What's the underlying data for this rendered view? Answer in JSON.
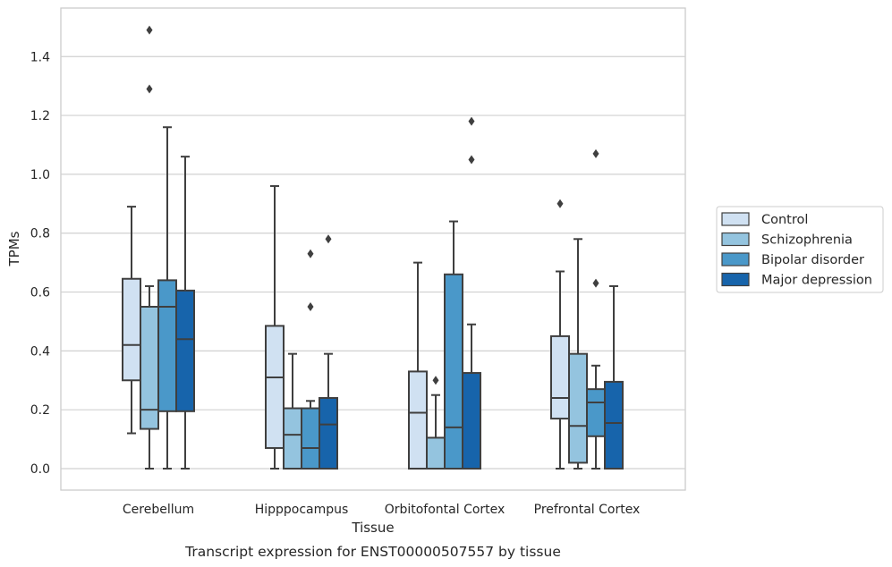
{
  "caption": "Transcript expression for ENST00000507557 by tissue",
  "chart_data": {
    "type": "box",
    "xlabel": "Tissue",
    "ylabel": "TPMs",
    "ylim": [
      -0.07,
      1.57
    ],
    "yticks": [
      0.0,
      0.2,
      0.4,
      0.6,
      0.8,
      1.0,
      1.2,
      1.4
    ],
    "ytick_labels": [
      "0.0",
      "0.2",
      "0.4",
      "0.6",
      "0.8",
      "1.0",
      "1.2",
      "1.4"
    ],
    "grid": true,
    "legend_position": "right",
    "categories": [
      "Cerebellum",
      "Hipppocampus",
      "Orbitofontal Cortex",
      "Prefrontal Cortex"
    ],
    "series": [
      {
        "name": "Control",
        "color": "#d0e1f2",
        "boxes": [
          {
            "whisker_low": 0.12,
            "q1": 0.3,
            "median": 0.42,
            "q3": 0.645,
            "whisker_high": 0.89,
            "outliers": []
          },
          {
            "whisker_low": 0.0,
            "q1": 0.07,
            "median": 0.31,
            "q3": 0.485,
            "whisker_high": 0.96,
            "outliers": []
          },
          {
            "whisker_low": 0.0,
            "q1": 0.0,
            "median": 0.19,
            "q3": 0.33,
            "whisker_high": 0.7,
            "outliers": []
          },
          {
            "whisker_low": 0.0,
            "q1": 0.17,
            "median": 0.24,
            "q3": 0.45,
            "whisker_high": 0.67,
            "outliers": [
              0.9
            ]
          }
        ]
      },
      {
        "name": "Schizophrenia",
        "color": "#94c4df",
        "boxes": [
          {
            "whisker_low": 0.0,
            "q1": 0.135,
            "median": 0.2,
            "q3": 0.55,
            "whisker_high": 0.62,
            "outliers": [
              1.29,
              1.49
            ]
          },
          {
            "whisker_low": 0.0,
            "q1": 0.0,
            "median": 0.115,
            "q3": 0.205,
            "whisker_high": 0.39,
            "outliers": []
          },
          {
            "whisker_low": 0.0,
            "q1": 0.0,
            "median": 0.0,
            "q3": 0.105,
            "whisker_high": 0.25,
            "outliers": [
              0.3
            ]
          },
          {
            "whisker_low": 0.0,
            "q1": 0.02,
            "median": 0.145,
            "q3": 0.39,
            "whisker_high": 0.78,
            "outliers": []
          }
        ]
      },
      {
        "name": "Bipolar disorder",
        "color": "#4a98c9",
        "boxes": [
          {
            "whisker_low": 0.0,
            "q1": 0.195,
            "median": 0.55,
            "q3": 0.64,
            "whisker_high": 1.16,
            "outliers": []
          },
          {
            "whisker_low": 0.0,
            "q1": 0.0,
            "median": 0.07,
            "q3": 0.205,
            "whisker_high": 0.23,
            "outliers": [
              0.55,
              0.73
            ]
          },
          {
            "whisker_low": 0.0,
            "q1": 0.0,
            "median": 0.14,
            "q3": 0.66,
            "whisker_high": 0.84,
            "outliers": []
          },
          {
            "whisker_low": 0.0,
            "q1": 0.11,
            "median": 0.225,
            "q3": 0.27,
            "whisker_high": 0.35,
            "outliers": [
              0.63,
              1.07
            ]
          }
        ]
      },
      {
        "name": "Major depression",
        "color": "#1764ab",
        "boxes": [
          {
            "whisker_low": 0.0,
            "q1": 0.195,
            "median": 0.44,
            "q3": 0.605,
            "whisker_high": 1.06,
            "outliers": []
          },
          {
            "whisker_low": 0.0,
            "q1": 0.0,
            "median": 0.15,
            "q3": 0.24,
            "whisker_high": 0.39,
            "outliers": [
              0.78
            ]
          },
          {
            "whisker_low": 0.0,
            "q1": 0.0,
            "median": 0.0,
            "q3": 0.325,
            "whisker_high": 0.49,
            "outliers": [
              1.05,
              1.18
            ]
          },
          {
            "whisker_low": 0.0,
            "q1": 0.0,
            "median": 0.155,
            "q3": 0.295,
            "whisker_high": 0.62,
            "outliers": []
          }
        ]
      }
    ]
  }
}
